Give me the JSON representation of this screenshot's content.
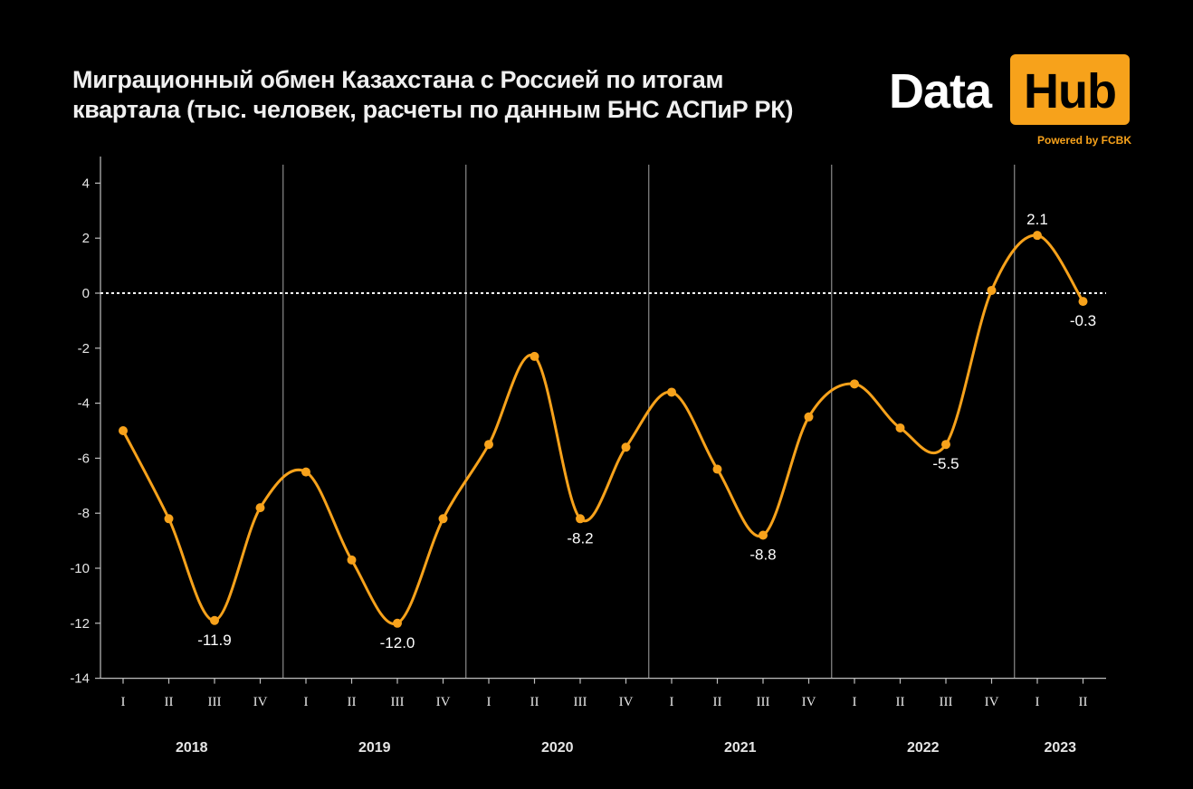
{
  "header": {
    "title_line1": "Миграционный обмен Казахстана с Россией по итогам",
    "title_line2": "квартала (тыс. человек, расчеты по данным БНС АСПиР РК)"
  },
  "logo": {
    "data_text": "Data",
    "hub_text": "Hub",
    "powered_text": "Powered by FCBK",
    "accent_color": "#f7a21b"
  },
  "chart_data": {
    "type": "line",
    "title": "Миграционный обмен Казахстана с Россией по итогам квартала (тыс. человек, расчеты по данным БНС АСПиР РК)",
    "x": [
      "I",
      "II",
      "III",
      "IV",
      "I",
      "II",
      "III",
      "IV",
      "I",
      "II",
      "III",
      "IV",
      "I",
      "II",
      "III",
      "IV",
      "I",
      "II",
      "III",
      "IV",
      "I",
      "II"
    ],
    "years": [
      {
        "label": "2018",
        "start": 0,
        "end": 3
      },
      {
        "label": "2019",
        "start": 4,
        "end": 7
      },
      {
        "label": "2020",
        "start": 8,
        "end": 11
      },
      {
        "label": "2021",
        "start": 12,
        "end": 15
      },
      {
        "label": "2022",
        "start": 16,
        "end": 19
      },
      {
        "label": "2023",
        "start": 20,
        "end": 21
      }
    ],
    "series": [
      {
        "values": [
          -5.0,
          -8.2,
          -11.9,
          -7.8,
          -6.5,
          -9.7,
          -12.0,
          -8.2,
          -5.5,
          -2.3,
          -8.2,
          -5.6,
          -3.6,
          -6.4,
          -8.8,
          -4.5,
          -3.3,
          -4.9,
          -5.5,
          0.1,
          2.1,
          -0.3
        ],
        "color": "#f7a21b"
      }
    ],
    "data_labels": [
      {
        "index": 2,
        "text": "-11.9",
        "pos": "below"
      },
      {
        "index": 6,
        "text": "-12.0",
        "pos": "below"
      },
      {
        "index": 10,
        "text": "-8.2",
        "pos": "below"
      },
      {
        "index": 14,
        "text": "-8.8",
        "pos": "below"
      },
      {
        "index": 18,
        "text": "-5.5",
        "pos": "below"
      },
      {
        "index": 20,
        "text": "2.1",
        "pos": "above"
      },
      {
        "index": 21,
        "text": "-0.3",
        "pos": "below"
      }
    ],
    "yticks": [
      4,
      2,
      0,
      -2,
      -4,
      -6,
      -8,
      -10,
      -12,
      -14
    ],
    "ylim": [
      -14,
      5
    ],
    "zero_line": "dotted-white",
    "grid": false
  }
}
